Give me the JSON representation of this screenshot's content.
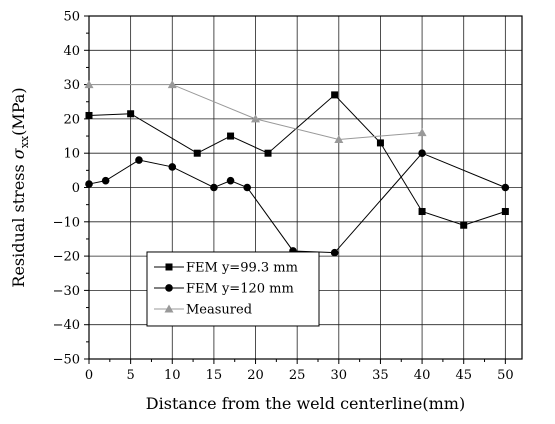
{
  "chart_data": {
    "type": "line",
    "xlabel": "Distance from the weld centerline(mm)",
    "ylabel": {
      "prefix": "Residual stress ",
      "symbol": "σ",
      "subscript": "xx",
      "unit": "(MPa)"
    },
    "xlim": [
      0,
      52
    ],
    "ylim": [
      -50,
      50
    ],
    "xticks": [
      0,
      5,
      10,
      15,
      20,
      25,
      30,
      35,
      40,
      45,
      50
    ],
    "yticks": [
      -50,
      -40,
      -30,
      -20,
      -10,
      0,
      10,
      20,
      30,
      40,
      50
    ],
    "grid": true,
    "legend_position": "bottom-left",
    "series": [
      {
        "name": "FEM y=99.3 mm",
        "marker": "square",
        "color": "#000000",
        "x": [
          0,
          5,
          13,
          17,
          21.5,
          29.5,
          35,
          40,
          45,
          50
        ],
        "y": [
          21,
          21.5,
          10,
          15,
          10,
          27,
          13,
          -7,
          -11,
          -7
        ]
      },
      {
        "name": "FEM y=120 mm",
        "marker": "circle",
        "color": "#000000",
        "x": [
          0,
          2,
          6,
          10,
          15,
          17,
          19,
          24.5,
          29.5,
          40,
          50
        ],
        "y": [
          1,
          2,
          8,
          6,
          0,
          2,
          0,
          -18.5,
          -19,
          10,
          0
        ]
      },
      {
        "name": "Measured",
        "marker": "triangle",
        "color": "#999999",
        "x": [
          0,
          10,
          20,
          30,
          40
        ],
        "y": [
          30,
          30,
          20,
          14,
          16
        ]
      }
    ]
  }
}
